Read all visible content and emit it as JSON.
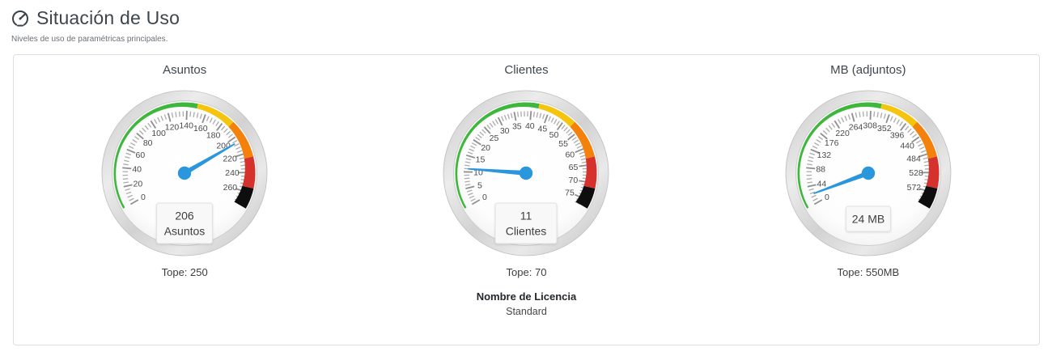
{
  "palette": {
    "needle": "#2a97dc",
    "band_green": "#3eb73c",
    "band_yellow": "#f5c40f",
    "band_orange": "#f5810d",
    "band_red": "#d5312d",
    "band_black": "#0e0e0e",
    "tick_minor": "#ababab",
    "tick_major": "#8f8f8f",
    "tick_label": "#4a4a4a",
    "value_box_bg": "#f8f8f8",
    "value_box_border": "#e2e2e2",
    "value_text": "#3e3e3e"
  },
  "header": {
    "icon": "speedometer-icon",
    "title": "Situación de Uso",
    "subtitle": "Niveles de uso de paramétricas principales."
  },
  "panel": {
    "gauges": [
      {
        "name": "asuntos",
        "title": "Asuntos",
        "value": 206,
        "min": 0,
        "max": 275,
        "tope": 250,
        "tope_label": "Tope: 250",
        "value_box_lines": [
          "206",
          "Asuntos"
        ],
        "tick_labels": [
          0,
          20,
          40,
          60,
          80,
          100,
          120,
          140,
          160,
          180,
          200,
          220,
          240,
          260
        ],
        "bands": [
          {
            "from": 0,
            "to": 150,
            "color": "#3eb73c"
          },
          {
            "from": 150,
            "to": 187.5,
            "color": "#f5c40f"
          },
          {
            "from": 187.5,
            "to": 225,
            "color": "#f5810d"
          },
          {
            "from": 225,
            "to": 255,
            "color": "#d5312d"
          },
          {
            "from": 255,
            "to": 275,
            "color": "#0e0e0e"
          }
        ]
      },
      {
        "name": "clientes",
        "title": "Clientes",
        "value": 11,
        "min": 0,
        "max": 77,
        "tope": 70,
        "tope_label": "Tope: 70",
        "value_box_lines": [
          "11",
          "Clientes"
        ],
        "tick_labels": [
          0,
          5,
          10,
          15,
          20,
          25,
          30,
          35,
          40,
          45,
          50,
          55,
          60,
          65,
          70,
          75
        ],
        "bands": [
          {
            "from": 0,
            "to": 42,
            "color": "#3eb73c"
          },
          {
            "from": 42,
            "to": 52.5,
            "color": "#f5c40f"
          },
          {
            "from": 52.5,
            "to": 63,
            "color": "#f5810d"
          },
          {
            "from": 63,
            "to": 71.4,
            "color": "#d5312d"
          },
          {
            "from": 71.4,
            "to": 77,
            "color": "#0e0e0e"
          }
        ]
      },
      {
        "name": "mb-adjuntos",
        "title": "MB (adjuntos)",
        "value": 24,
        "min": 0,
        "max": 605,
        "tope": 550,
        "tope_label": "Tope: 550MB",
        "value_box_lines": [
          "24 MB"
        ],
        "tick_labels": [
          0,
          44,
          88,
          132,
          176,
          220,
          264,
          308,
          352,
          396,
          440,
          484,
          528,
          572
        ],
        "bands": [
          {
            "from": 0,
            "to": 330,
            "color": "#3eb73c"
          },
          {
            "from": 330,
            "to": 412.5,
            "color": "#f5c40f"
          },
          {
            "from": 412.5,
            "to": 495,
            "color": "#f5810d"
          },
          {
            "from": 495,
            "to": 561,
            "color": "#d5312d"
          },
          {
            "from": 561,
            "to": 605,
            "color": "#0e0e0e"
          }
        ]
      }
    ],
    "license": {
      "label": "Nombre de Licencia",
      "value": "Standard"
    }
  }
}
